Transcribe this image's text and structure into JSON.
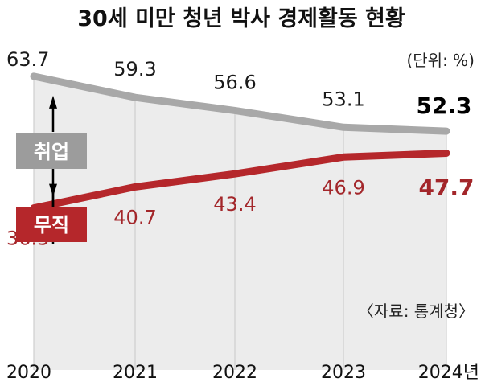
{
  "title": "30세 미만 청년 박사 경제활동 현황",
  "unit_label": "(단위: %)",
  "source_label": "〈자료: 통계청〉",
  "colors": {
    "employed_line": "#a8a8a8",
    "unemployed_line": "#b5272b",
    "badge_grey": "#9c9c9c",
    "badge_red": "#b5272b",
    "shade": "#ececec",
    "grid": "#cfcfcf"
  },
  "chart_data": {
    "type": "line",
    "title": "30세 미만 청년 박사 경제활동 현황",
    "xlabel": "",
    "ylabel": "%",
    "x": [
      "2020",
      "2021",
      "2022",
      "2023",
      "2024"
    ],
    "x_tick_labels": [
      "2020",
      "2021",
      "2022",
      "2023",
      "2024년"
    ],
    "ylim": [
      30,
      70
    ],
    "series": [
      {
        "name": "취업",
        "values": [
          63.7,
          59.3,
          56.6,
          53.1,
          52.3
        ],
        "labels": [
          "63.7",
          "59.3",
          "56.6",
          "53.1",
          "52.3"
        ]
      },
      {
        "name": "무직",
        "values": [
          36.3,
          40.7,
          43.4,
          46.9,
          47.7
        ],
        "labels": [
          "36.3",
          "40.7",
          "43.4",
          "46.9",
          "47.7"
        ]
      }
    ]
  }
}
